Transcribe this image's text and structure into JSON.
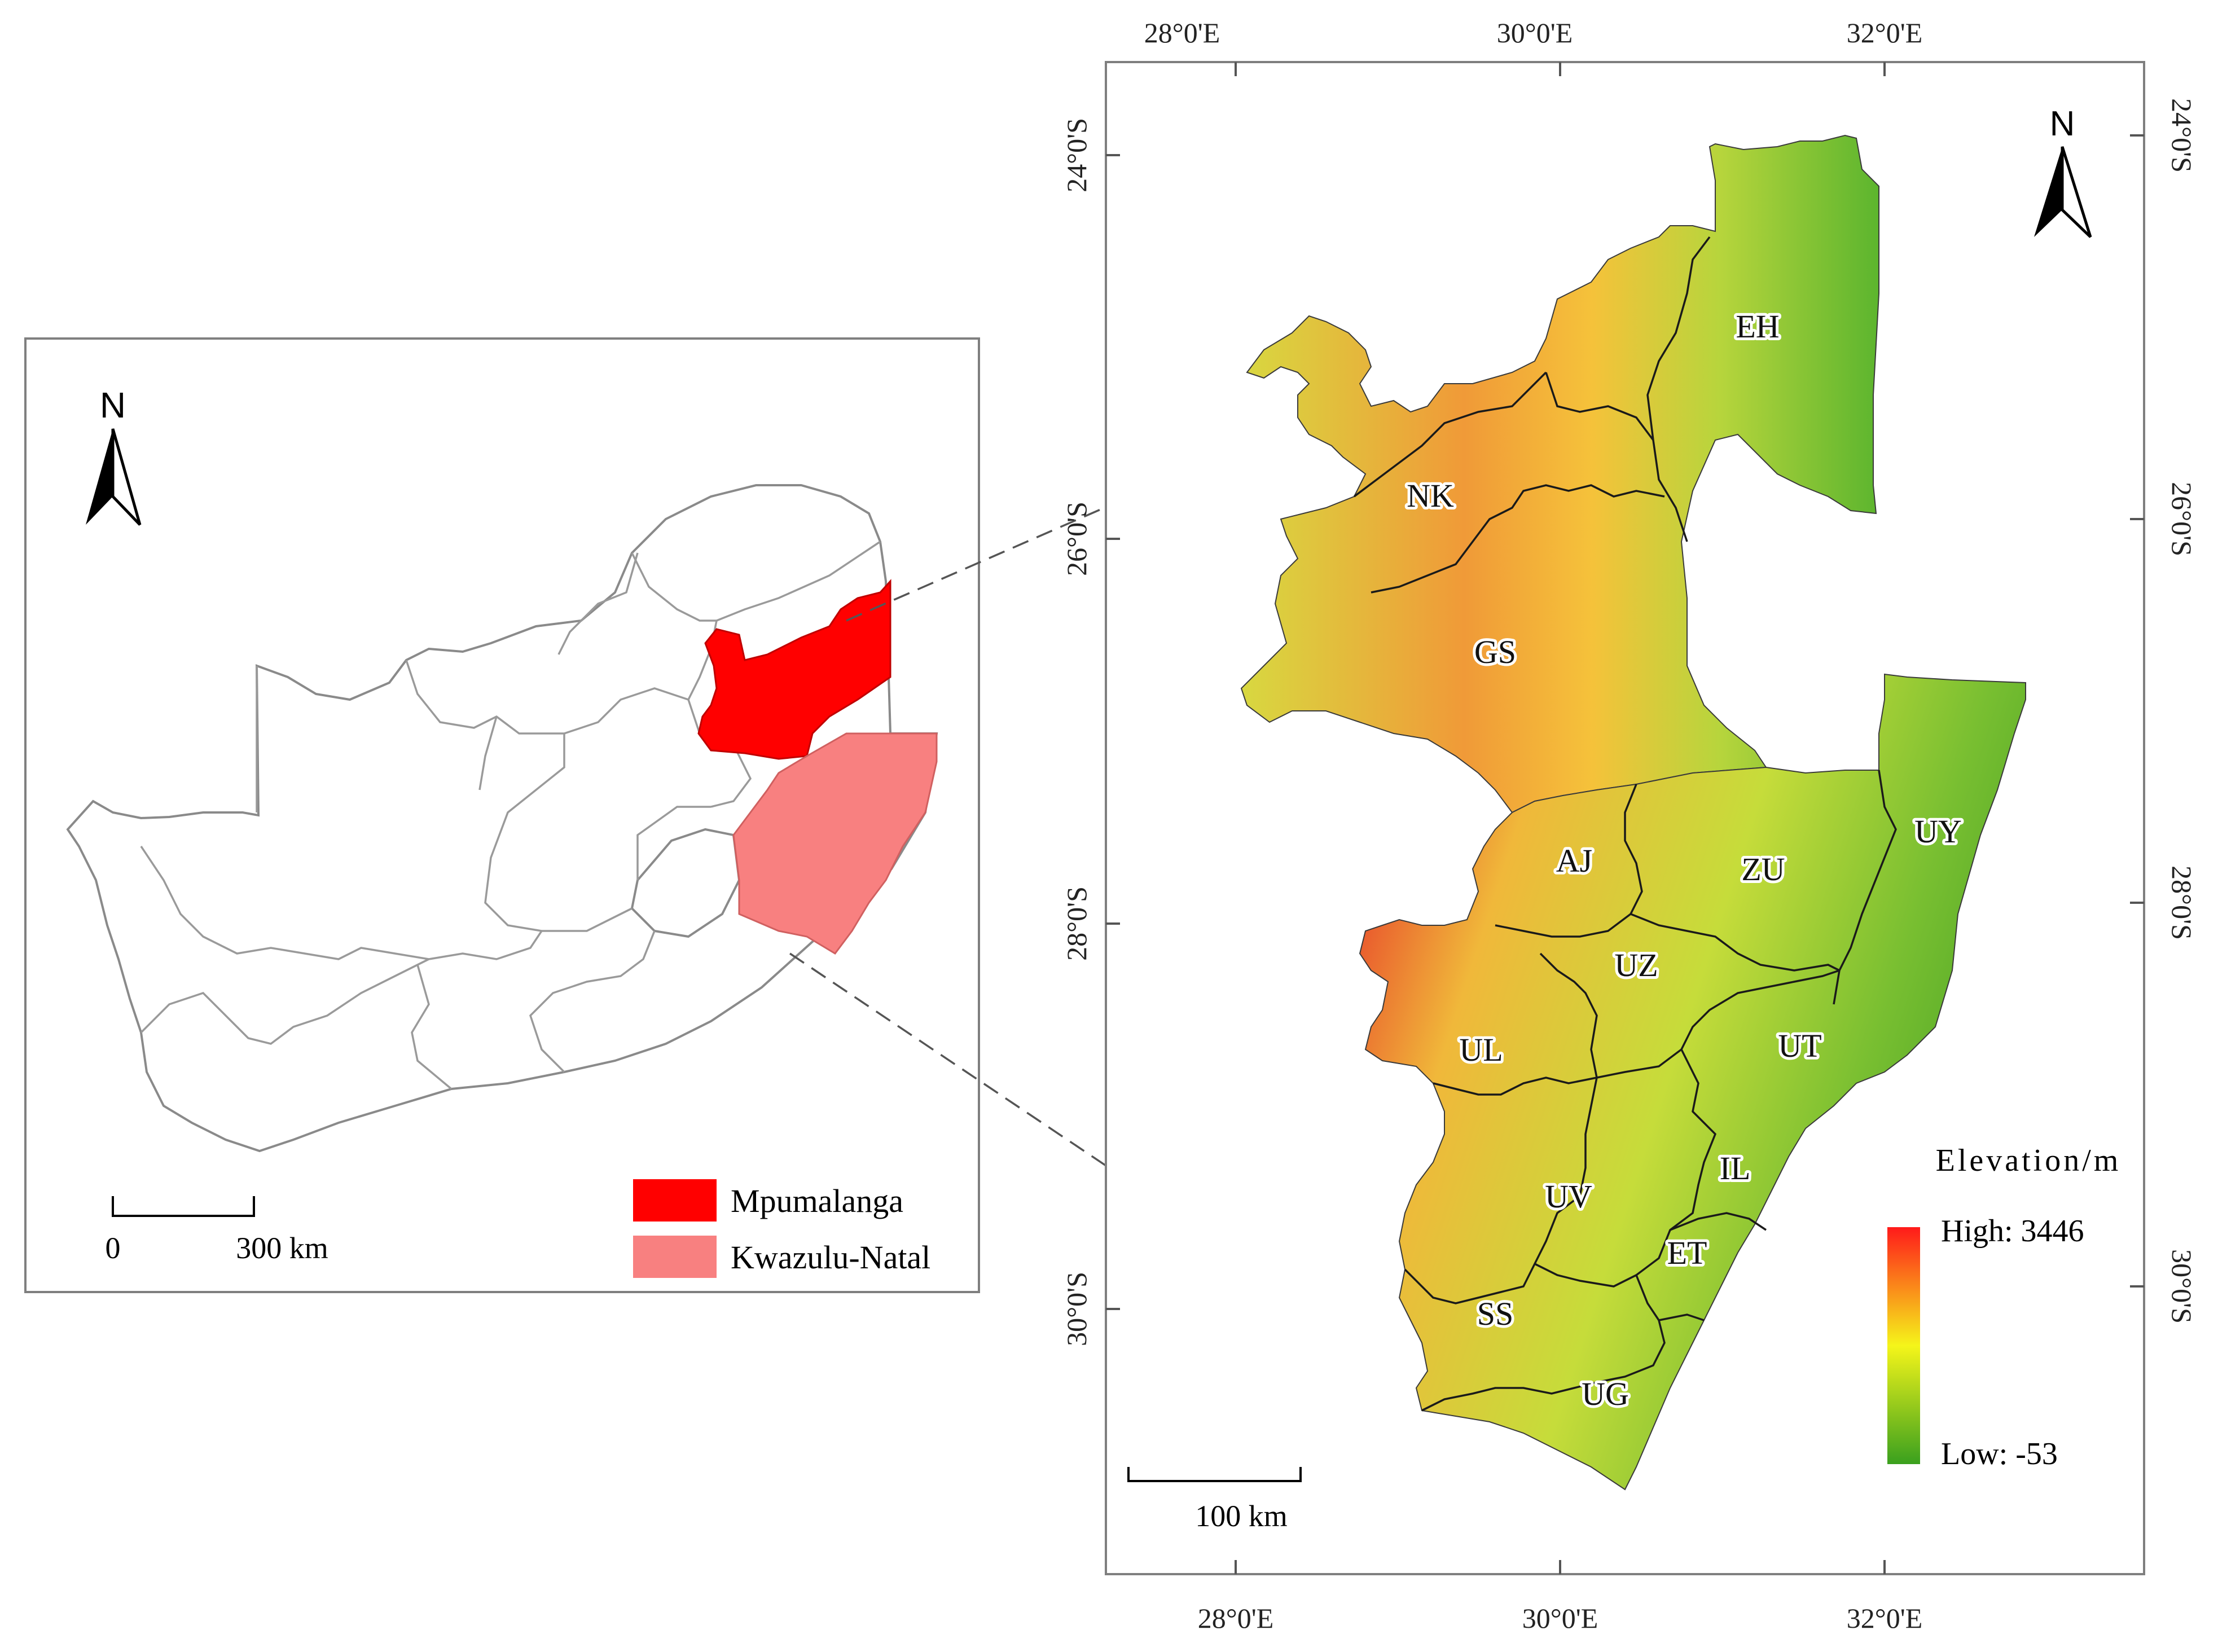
{
  "inset_map": {
    "north_label": "N",
    "scale": {
      "start_label": "0",
      "end_label": "300 km"
    },
    "legend": [
      {
        "name": "Mpumalanga",
        "color": "#ff0000"
      },
      {
        "name": "Kwazulu-Natal",
        "color": "#f88080"
      }
    ],
    "country_fill": "#ffffff",
    "boundary_color": "#8a8a8a"
  },
  "main_map": {
    "north_label": "N",
    "top_axis_ticks": [
      "28°0'E",
      "30°0'E",
      "32°0'E"
    ],
    "bottom_axis_ticks": [
      "28°0'E",
      "30°0'E",
      "32°0'E"
    ],
    "left_axis_ticks": [
      "24°0'S",
      "26°0'S",
      "28°0'S",
      "30°0'S"
    ],
    "right_axis_ticks": [
      "24°0'S",
      "26°0'S",
      "28°0'S",
      "30°0'S"
    ],
    "region_labels": [
      "EH",
      "NK",
      "GS",
      "AJ",
      "ZU",
      "UY",
      "UZ",
      "UL",
      "UT",
      "IL",
      "UV",
      "ET",
      "SS",
      "UG"
    ],
    "legend": {
      "title": "Elevation/m",
      "high_label": "High: 3446",
      "low_label": "Low: -53",
      "high_color": "#ff1a1a",
      "mid_color": "#f5f51a",
      "low_color": "#3aa01e"
    },
    "scale": {
      "label": "100 km"
    }
  }
}
